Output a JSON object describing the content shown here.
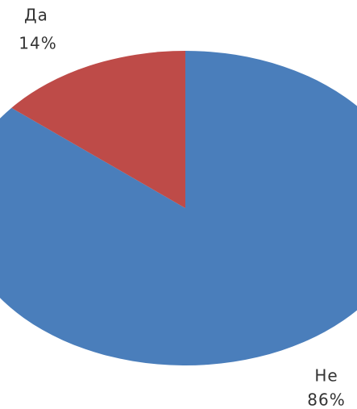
{
  "chart_data": {
    "type": "pie",
    "categories": [
      "Да",
      "Не"
    ],
    "values": [
      14,
      86
    ],
    "value_labels": [
      "14%",
      "86%"
    ],
    "colors": [
      "#be4b48",
      "#4a7ebb"
    ]
  }
}
